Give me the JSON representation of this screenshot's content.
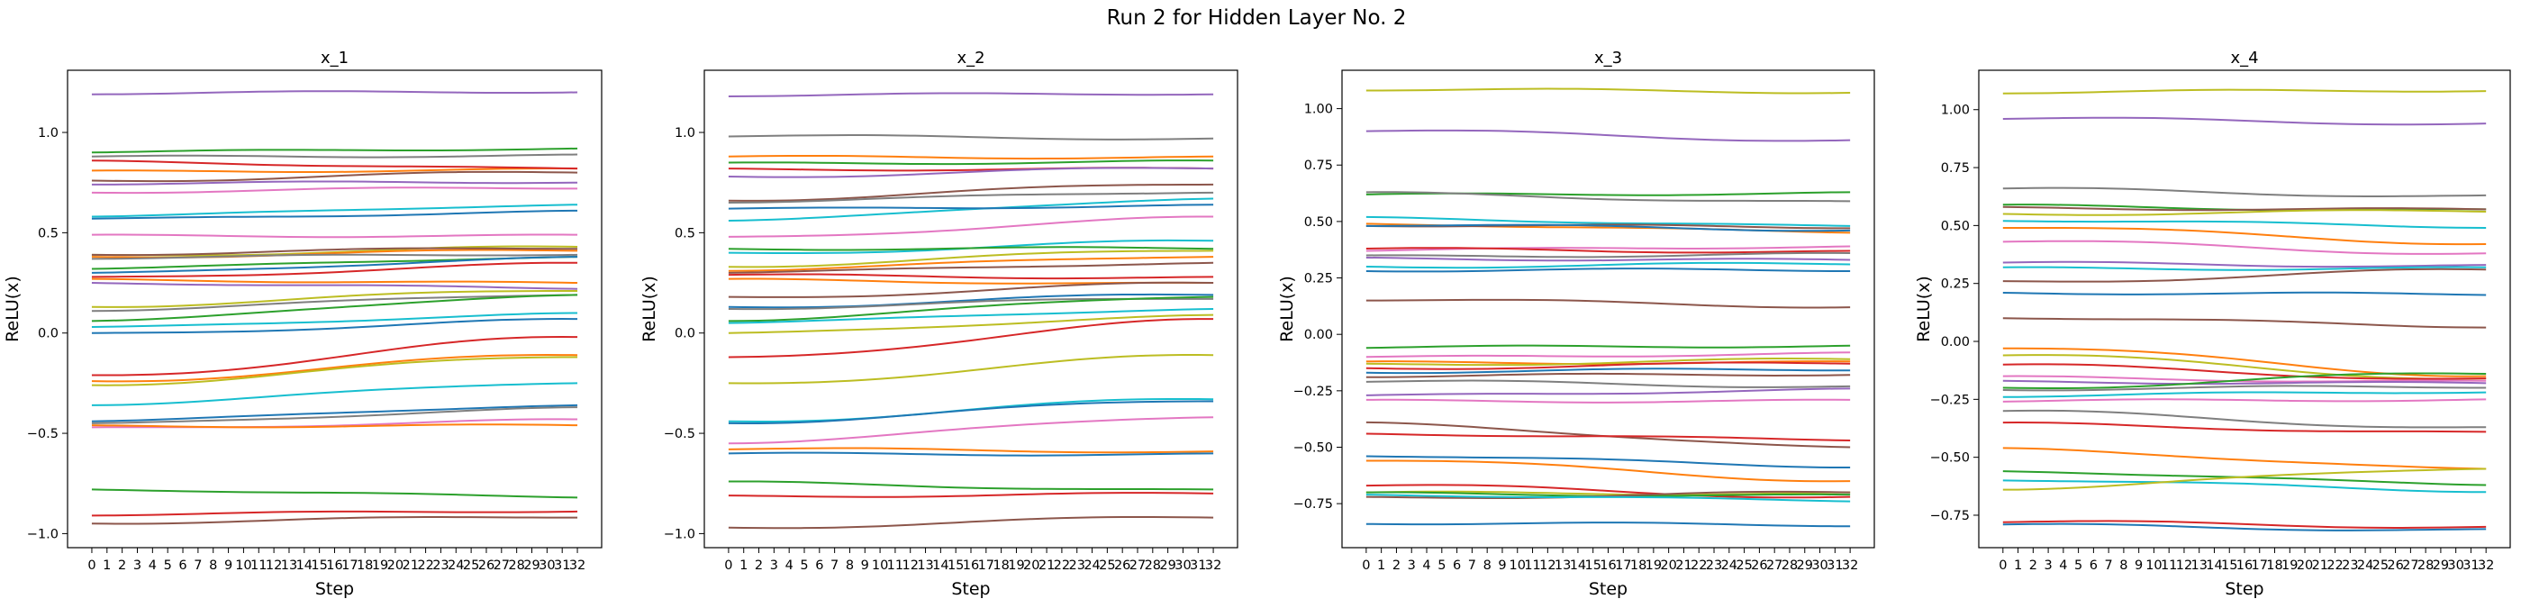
{
  "figure": {
    "suptitle": "Run 2 for Hidden Layer No. 2"
  },
  "chart_data": [
    {
      "type": "line",
      "title": "x_1",
      "xlabel": "Step",
      "ylabel": "ReLU(x)",
      "x": [
        0,
        1,
        2,
        3,
        4,
        5,
        6,
        7,
        8,
        9,
        10,
        11,
        12,
        13,
        14,
        15,
        16,
        17,
        18,
        19,
        20,
        21,
        22,
        23,
        24,
        25,
        26,
        27,
        28,
        29,
        30,
        31,
        32
      ],
      "xlim": [
        -1.6,
        33.6
      ],
      "ylim": [
        -1.07,
        1.31
      ],
      "yticks": [
        -1.0,
        -0.5,
        0.0,
        0.5,
        1.0
      ],
      "yticklabels": [
        "−1.0",
        "−0.5",
        "0.0",
        "0.5",
        "1.0"
      ],
      "series": [
        {
          "color": "#9467bd",
          "start": 1.19,
          "end": 1.2
        },
        {
          "color": "#2ca02c",
          "start": 0.9,
          "end": 0.92
        },
        {
          "color": "#7f7f7f",
          "start": 0.88,
          "end": 0.89
        },
        {
          "color": "#ff7f0e",
          "start": 0.81,
          "end": 0.82
        },
        {
          "color": "#d62728",
          "start": 0.86,
          "end": 0.82
        },
        {
          "color": "#8c564b",
          "start": 0.76,
          "end": 0.8
        },
        {
          "color": "#e377c2",
          "start": 0.7,
          "end": 0.72
        },
        {
          "color": "#9467bd",
          "start": 0.74,
          "end": 0.75
        },
        {
          "color": "#17becf",
          "start": 0.58,
          "end": 0.64
        },
        {
          "color": "#1f77b4",
          "start": 0.57,
          "end": 0.61
        },
        {
          "color": "#e377c2",
          "start": 0.49,
          "end": 0.49
        },
        {
          "color": "#bcbd22",
          "start": 0.39,
          "end": 0.43
        },
        {
          "color": "#ff7f0e",
          "start": 0.38,
          "end": 0.41
        },
        {
          "color": "#8c564b",
          "start": 0.39,
          "end": 0.42
        },
        {
          "color": "#7f7f7f",
          "start": 0.37,
          "end": 0.39
        },
        {
          "color": "#2ca02c",
          "start": 0.32,
          "end": 0.38
        },
        {
          "color": "#1f77b4",
          "start": 0.3,
          "end": 0.38
        },
        {
          "color": "#d62728",
          "start": 0.28,
          "end": 0.35
        },
        {
          "color": "#ff7f0e",
          "start": 0.27,
          "end": 0.25
        },
        {
          "color": "#9467bd",
          "start": 0.25,
          "end": 0.22
        },
        {
          "color": "#bcbd22",
          "start": 0.13,
          "end": 0.21
        },
        {
          "color": "#7f7f7f",
          "start": 0.11,
          "end": 0.19
        },
        {
          "color": "#2ca02c",
          "start": 0.06,
          "end": 0.19
        },
        {
          "color": "#17becf",
          "start": 0.03,
          "end": 0.1
        },
        {
          "color": "#1f77b4",
          "start": 0.0,
          "end": 0.07
        },
        {
          "color": "#d62728",
          "start": -0.21,
          "end": -0.02
        },
        {
          "color": "#ff7f0e",
          "start": -0.24,
          "end": -0.11
        },
        {
          "color": "#bcbd22",
          "start": -0.26,
          "end": -0.12
        },
        {
          "color": "#17becf",
          "start": -0.36,
          "end": -0.25
        },
        {
          "color": "#1f77b4",
          "start": -0.44,
          "end": -0.36
        },
        {
          "color": "#7f7f7f",
          "start": -0.45,
          "end": -0.37
        },
        {
          "color": "#e377c2",
          "start": -0.47,
          "end": -0.43
        },
        {
          "color": "#ff7f0e",
          "start": -0.46,
          "end": -0.46
        },
        {
          "color": "#2ca02c",
          "start": -0.78,
          "end": -0.82
        },
        {
          "color": "#8c564b",
          "start": -0.95,
          "end": -0.92
        },
        {
          "color": "#d62728",
          "start": -0.91,
          "end": -0.89
        }
      ]
    },
    {
      "type": "line",
      "title": "x_2",
      "xlabel": "Step",
      "ylabel": "ReLU(x)",
      "x": [
        0,
        1,
        2,
        3,
        4,
        5,
        6,
        7,
        8,
        9,
        10,
        11,
        12,
        13,
        14,
        15,
        16,
        17,
        18,
        19,
        20,
        21,
        22,
        23,
        24,
        25,
        26,
        27,
        28,
        29,
        30,
        31,
        32
      ],
      "xlim": [
        -1.6,
        33.6
      ],
      "ylim": [
        -1.07,
        1.31
      ],
      "yticks": [
        -1.0,
        -0.5,
        0.0,
        0.5,
        1.0
      ],
      "yticklabels": [
        "−1.0",
        "−0.5",
        "0.0",
        "0.5",
        "1.0"
      ],
      "series": [
        {
          "color": "#9467bd",
          "start": 1.18,
          "end": 1.19
        },
        {
          "color": "#7f7f7f",
          "start": 0.98,
          "end": 0.97
        },
        {
          "color": "#ff7f0e",
          "start": 0.88,
          "end": 0.88
        },
        {
          "color": "#2ca02c",
          "start": 0.85,
          "end": 0.86
        },
        {
          "color": "#d62728",
          "start": 0.82,
          "end": 0.82
        },
        {
          "color": "#9467bd",
          "start": 0.78,
          "end": 0.82
        },
        {
          "color": "#8c564b",
          "start": 0.66,
          "end": 0.74
        },
        {
          "color": "#7f7f7f",
          "start": 0.65,
          "end": 0.7
        },
        {
          "color": "#17becf",
          "start": 0.56,
          "end": 0.67
        },
        {
          "color": "#1f77b4",
          "start": 0.62,
          "end": 0.64
        },
        {
          "color": "#e377c2",
          "start": 0.48,
          "end": 0.58
        },
        {
          "color": "#17becf",
          "start": 0.4,
          "end": 0.46
        },
        {
          "color": "#2ca02c",
          "start": 0.42,
          "end": 0.42
        },
        {
          "color": "#bcbd22",
          "start": 0.33,
          "end": 0.41
        },
        {
          "color": "#ff7f0e",
          "start": 0.31,
          "end": 0.38
        },
        {
          "color": "#8c564b",
          "start": 0.3,
          "end": 0.35
        },
        {
          "color": "#d62728",
          "start": 0.29,
          "end": 0.28
        },
        {
          "color": "#ff7f0e",
          "start": 0.27,
          "end": 0.25
        },
        {
          "color": "#8c564b",
          "start": 0.18,
          "end": 0.25
        },
        {
          "color": "#1f77b4",
          "start": 0.13,
          "end": 0.19
        },
        {
          "color": "#7f7f7f",
          "start": 0.12,
          "end": 0.17
        },
        {
          "color": "#2ca02c",
          "start": 0.06,
          "end": 0.18
        },
        {
          "color": "#17becf",
          "start": 0.05,
          "end": 0.12
        },
        {
          "color": "#bcbd22",
          "start": 0.0,
          "end": 0.09
        },
        {
          "color": "#d62728",
          "start": -0.12,
          "end": 0.07
        },
        {
          "color": "#bcbd22",
          "start": -0.25,
          "end": -0.11
        },
        {
          "color": "#17becf",
          "start": -0.44,
          "end": -0.33
        },
        {
          "color": "#1f77b4",
          "start": -0.45,
          "end": -0.34
        },
        {
          "color": "#e377c2",
          "start": -0.55,
          "end": -0.42
        },
        {
          "color": "#ff7f0e",
          "start": -0.58,
          "end": -0.59
        },
        {
          "color": "#1f77b4",
          "start": -0.6,
          "end": -0.6
        },
        {
          "color": "#2ca02c",
          "start": -0.74,
          "end": -0.78
        },
        {
          "color": "#d62728",
          "start": -0.81,
          "end": -0.8
        },
        {
          "color": "#8c564b",
          "start": -0.97,
          "end": -0.92
        }
      ]
    },
    {
      "type": "line",
      "title": "x_3",
      "xlabel": "Step",
      "ylabel": "ReLU(x)",
      "x": [
        0,
        1,
        2,
        3,
        4,
        5,
        6,
        7,
        8,
        9,
        10,
        11,
        12,
        13,
        14,
        15,
        16,
        17,
        18,
        19,
        20,
        21,
        22,
        23,
        24,
        25,
        26,
        27,
        28,
        29,
        30,
        31,
        32
      ],
      "xlim": [
        -1.6,
        33.6
      ],
      "ylim": [
        -0.945,
        1.17
      ],
      "yticks": [
        -0.75,
        -0.5,
        -0.25,
        0.0,
        0.25,
        0.5,
        0.75,
        1.0
      ],
      "yticklabels": [
        "−0.75",
        "−0.50",
        "−0.25",
        "0.00",
        "0.25",
        "0.50",
        "0.75",
        "1.00"
      ],
      "series": [
        {
          "color": "#bcbd22",
          "start": 1.08,
          "end": 1.07
        },
        {
          "color": "#9467bd",
          "start": 0.9,
          "end": 0.86
        },
        {
          "color": "#2ca02c",
          "start": 0.62,
          "end": 0.63
        },
        {
          "color": "#7f7f7f",
          "start": 0.63,
          "end": 0.59
        },
        {
          "color": "#17becf",
          "start": 0.52,
          "end": 0.48
        },
        {
          "color": "#ff7f0e",
          "start": 0.49,
          "end": 0.45
        },
        {
          "color": "#8c564b",
          "start": 0.48,
          "end": 0.47
        },
        {
          "color": "#1f77b4",
          "start": 0.48,
          "end": 0.46
        },
        {
          "color": "#e377c2",
          "start": 0.37,
          "end": 0.39
        },
        {
          "color": "#d62728",
          "start": 0.38,
          "end": 0.37
        },
        {
          "color": "#7f7f7f",
          "start": 0.35,
          "end": 0.36
        },
        {
          "color": "#9467bd",
          "start": 0.34,
          "end": 0.33
        },
        {
          "color": "#17becf",
          "start": 0.3,
          "end": 0.31
        },
        {
          "color": "#1f77b4",
          "start": 0.28,
          "end": 0.28
        },
        {
          "color": "#8c564b",
          "start": 0.15,
          "end": 0.12
        },
        {
          "color": "#2ca02c",
          "start": -0.06,
          "end": -0.05
        },
        {
          "color": "#e377c2",
          "start": -0.1,
          "end": -0.08
        },
        {
          "color": "#ff7f0e",
          "start": -0.12,
          "end": -0.12
        },
        {
          "color": "#bcbd22",
          "start": -0.13,
          "end": -0.11
        },
        {
          "color": "#d62728",
          "start": -0.15,
          "end": -0.13
        },
        {
          "color": "#1f77b4",
          "start": -0.17,
          "end": -0.16
        },
        {
          "color": "#8c564b",
          "start": -0.19,
          "end": -0.18
        },
        {
          "color": "#7f7f7f",
          "start": -0.21,
          "end": -0.23
        },
        {
          "color": "#9467bd",
          "start": -0.27,
          "end": -0.24
        },
        {
          "color": "#e377c2",
          "start": -0.29,
          "end": -0.29
        },
        {
          "color": "#8c564b",
          "start": -0.39,
          "end": -0.5
        },
        {
          "color": "#d62728",
          "start": -0.44,
          "end": -0.47
        },
        {
          "color": "#1f77b4",
          "start": -0.54,
          "end": -0.59
        },
        {
          "color": "#ff7f0e",
          "start": -0.56,
          "end": -0.65
        },
        {
          "color": "#d62728",
          "start": -0.67,
          "end": -0.72
        },
        {
          "color": "#bcbd22",
          "start": -0.7,
          "end": -0.7
        },
        {
          "color": "#2ca02c",
          "start": -0.7,
          "end": -0.71
        },
        {
          "color": "#8c564b",
          "start": -0.72,
          "end": -0.7
        },
        {
          "color": "#17becf",
          "start": -0.71,
          "end": -0.74
        },
        {
          "color": "#1f77b4",
          "start": -0.84,
          "end": -0.85
        }
      ]
    },
    {
      "type": "line",
      "title": "x_4",
      "xlabel": "Step",
      "ylabel": "ReLU(x)",
      "x": [
        0,
        1,
        2,
        3,
        4,
        5,
        6,
        7,
        8,
        9,
        10,
        11,
        12,
        13,
        14,
        15,
        16,
        17,
        18,
        19,
        20,
        21,
        22,
        23,
        24,
        25,
        26,
        27,
        28,
        29,
        30,
        31,
        32
      ],
      "xlim": [
        -1.6,
        33.6
      ],
      "ylim": [
        -0.89,
        1.17
      ],
      "yticks": [
        -0.75,
        -0.5,
        -0.25,
        0.0,
        0.25,
        0.5,
        0.75,
        1.0
      ],
      "yticklabels": [
        "−0.75",
        "−0.50",
        "−0.25",
        "0.00",
        "0.25",
        "0.50",
        "0.75",
        "1.00"
      ],
      "series": [
        {
          "color": "#bcbd22",
          "start": 1.07,
          "end": 1.08
        },
        {
          "color": "#9467bd",
          "start": 0.96,
          "end": 0.94
        },
        {
          "color": "#7f7f7f",
          "start": 0.66,
          "end": 0.63
        },
        {
          "color": "#2ca02c",
          "start": 0.59,
          "end": 0.57
        },
        {
          "color": "#8c564b",
          "start": 0.58,
          "end": 0.57
        },
        {
          "color": "#bcbd22",
          "start": 0.55,
          "end": 0.56
        },
        {
          "color": "#17becf",
          "start": 0.52,
          "end": 0.49
        },
        {
          "color": "#ff7f0e",
          "start": 0.49,
          "end": 0.42
        },
        {
          "color": "#e377c2",
          "start": 0.43,
          "end": 0.38
        },
        {
          "color": "#9467bd",
          "start": 0.34,
          "end": 0.33
        },
        {
          "color": "#17becf",
          "start": 0.32,
          "end": 0.32
        },
        {
          "color": "#8c564b",
          "start": 0.26,
          "end": 0.31
        },
        {
          "color": "#1f77b4",
          "start": 0.21,
          "end": 0.2
        },
        {
          "color": "#8c564b",
          "start": 0.1,
          "end": 0.06
        },
        {
          "color": "#ff7f0e",
          "start": -0.03,
          "end": -0.15
        },
        {
          "color": "#bcbd22",
          "start": -0.06,
          "end": -0.16
        },
        {
          "color": "#d62728",
          "start": -0.1,
          "end": -0.16
        },
        {
          "color": "#e377c2",
          "start": -0.15,
          "end": -0.17
        },
        {
          "color": "#9467bd",
          "start": -0.17,
          "end": -0.18
        },
        {
          "color": "#2ca02c",
          "start": -0.2,
          "end": -0.14
        },
        {
          "color": "#7f7f7f",
          "start": -0.21,
          "end": -0.2
        },
        {
          "color": "#17becf",
          "start": -0.24,
          "end": -0.22
        },
        {
          "color": "#e377c2",
          "start": -0.26,
          "end": -0.25
        },
        {
          "color": "#7f7f7f",
          "start": -0.3,
          "end": -0.37
        },
        {
          "color": "#d62728",
          "start": -0.35,
          "end": -0.39
        },
        {
          "color": "#ff7f0e",
          "start": -0.46,
          "end": -0.55
        },
        {
          "color": "#2ca02c",
          "start": -0.56,
          "end": -0.62
        },
        {
          "color": "#17becf",
          "start": -0.6,
          "end": -0.65
        },
        {
          "color": "#bcbd22",
          "start": -0.64,
          "end": -0.55
        },
        {
          "color": "#d62728",
          "start": -0.78,
          "end": -0.8
        },
        {
          "color": "#1f77b4",
          "start": -0.79,
          "end": -0.81
        }
      ]
    }
  ]
}
